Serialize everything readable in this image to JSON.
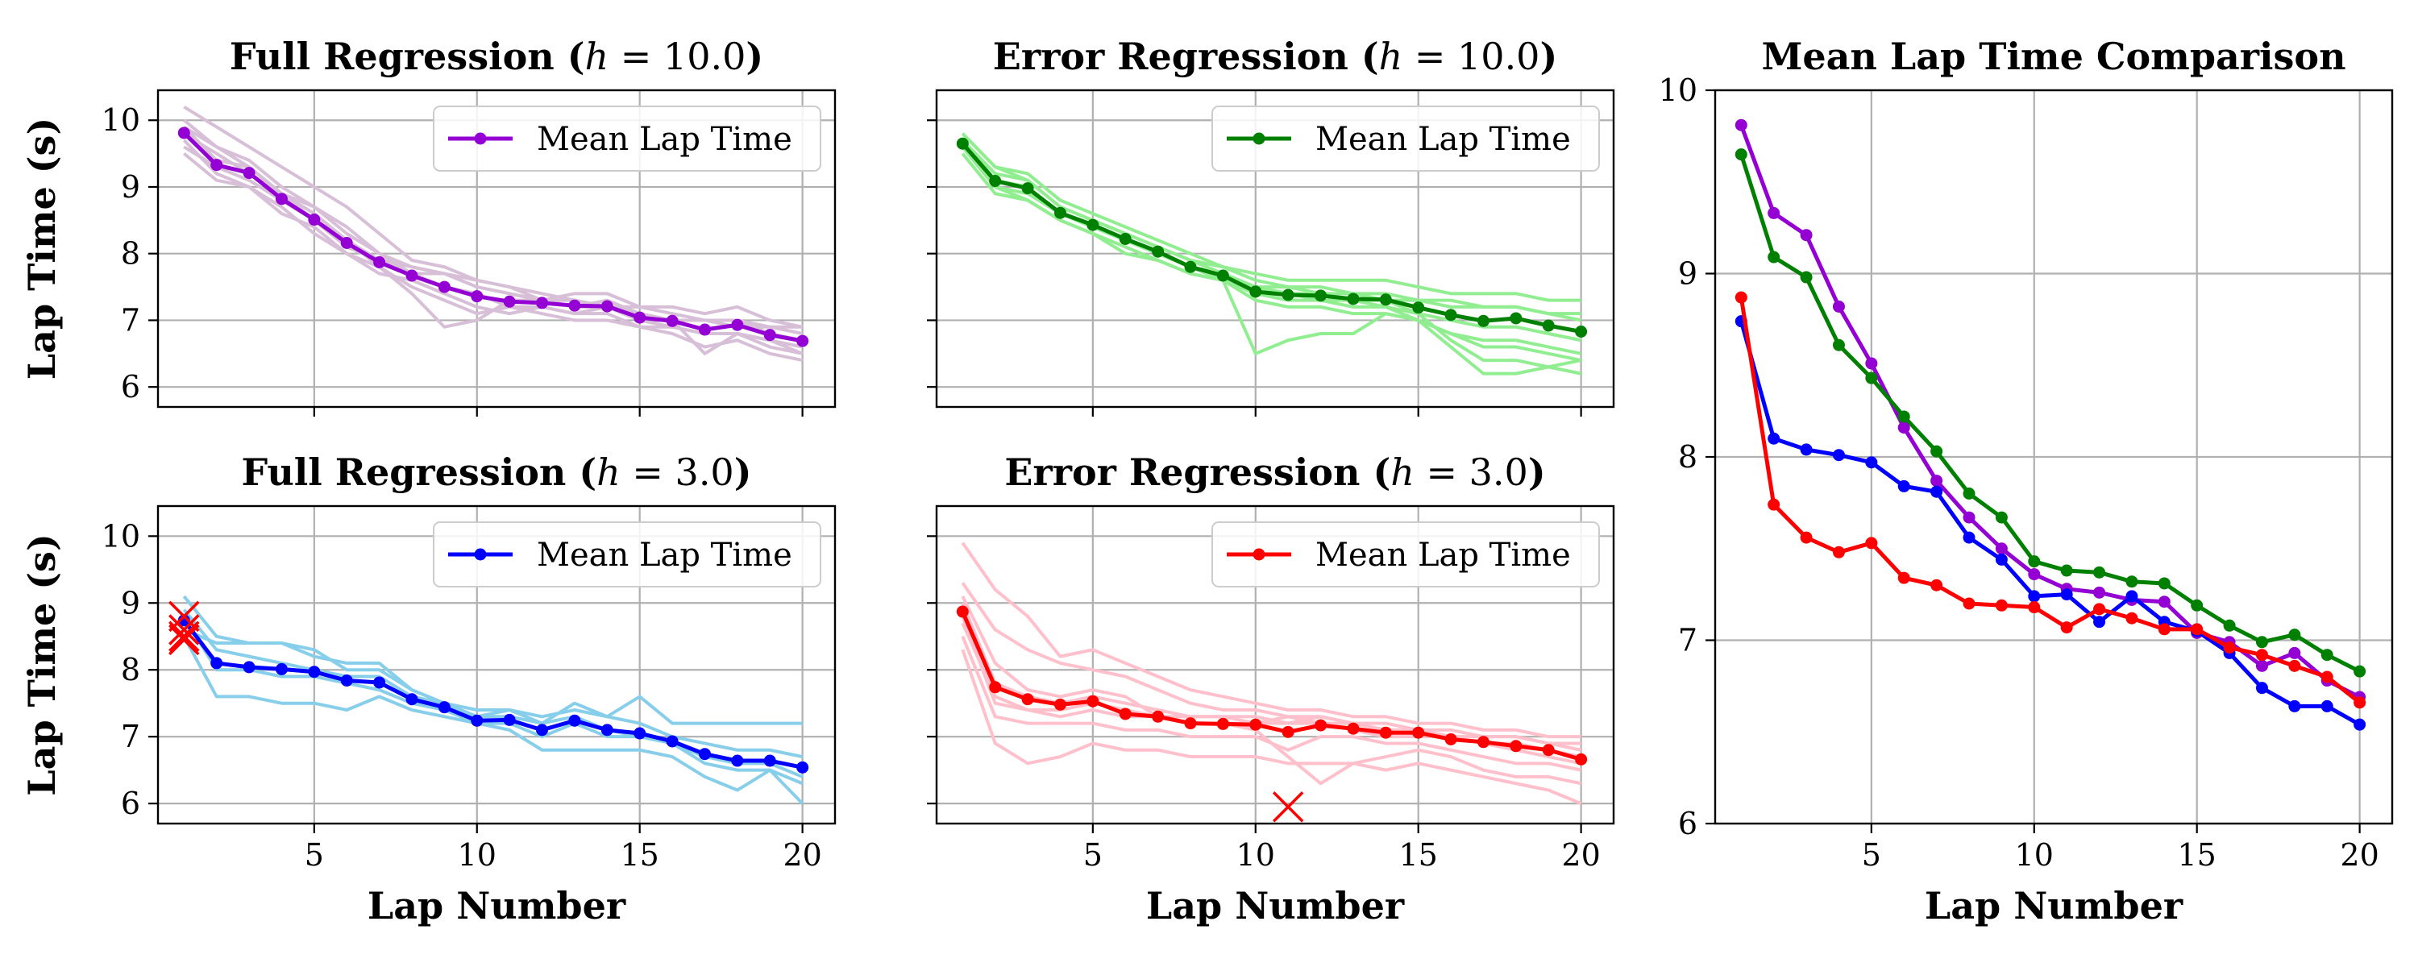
{
  "chart_data": [
    {
      "id": "full_h10",
      "type": "line",
      "title": {
        "main": "Full Regression (",
        "var": "h",
        "eq": " = ",
        "num": "10.0",
        "close": ")"
      },
      "ylabel": "Lap Time (s)",
      "xlabel": "",
      "xlim": [
        0.2,
        21
      ],
      "ylim": [
        5.7,
        10.45
      ],
      "xticks": [
        5,
        10,
        15,
        20
      ],
      "yticks": [
        6,
        7,
        8,
        9,
        10
      ],
      "show_xticklabels": false,
      "show_yticklabels": true,
      "grid": true,
      "legend": {
        "label": "Mean Lap Time",
        "position": "top-right"
      },
      "colors": {
        "trial": "#d8bfd8",
        "mean": "#9400d3"
      },
      "x": [
        1,
        2,
        3,
        4,
        5,
        6,
        7,
        8,
        9,
        10,
        11,
        12,
        13,
        14,
        15,
        16,
        17,
        18,
        19,
        20
      ],
      "mean": [
        9.81,
        9.33,
        9.21,
        8.82,
        8.51,
        8.16,
        7.87,
        7.67,
        7.5,
        7.36,
        7.28,
        7.26,
        7.22,
        7.21,
        7.04,
        6.99,
        6.86,
        6.93,
        6.78,
        6.69
      ],
      "trials": [
        [
          10.2,
          9.9,
          9.6,
          9.3,
          9.0,
          8.7,
          8.3,
          7.9,
          7.8,
          7.6,
          7.5,
          7.4,
          7.3,
          7.2,
          7.2,
          7.1,
          7.0,
          7.0,
          6.9,
          6.8
        ],
        [
          10.0,
          9.6,
          9.3,
          8.9,
          8.7,
          8.4,
          8.0,
          7.8,
          7.7,
          7.6,
          7.5,
          7.3,
          7.3,
          7.2,
          7.1,
          7.0,
          7.0,
          6.9,
          6.9,
          6.9
        ],
        [
          9.8,
          9.5,
          9.2,
          8.9,
          8.5,
          8.1,
          7.9,
          7.7,
          7.5,
          7.4,
          7.2,
          7.2,
          7.1,
          7.1,
          6.9,
          6.9,
          6.8,
          6.8,
          6.7,
          6.6
        ],
        [
          9.7,
          9.2,
          9.0,
          8.7,
          8.3,
          8.0,
          7.7,
          7.6,
          7.4,
          7.2,
          7.1,
          7.2,
          7.1,
          7.2,
          7.0,
          6.9,
          6.8,
          6.8,
          6.6,
          6.5
        ],
        [
          9.5,
          9.1,
          9.0,
          8.6,
          8.4,
          8.0,
          7.8,
          7.5,
          7.3,
          7.1,
          7.2,
          7.1,
          7.0,
          7.0,
          6.9,
          6.8,
          6.6,
          6.7,
          6.5,
          6.4
        ],
        [
          9.9,
          9.6,
          9.4,
          9.0,
          8.7,
          8.3,
          8.0,
          7.7,
          7.7,
          7.5,
          7.4,
          7.3,
          7.4,
          7.4,
          7.2,
          7.2,
          7.1,
          7.2,
          7.0,
          6.9
        ],
        [
          9.6,
          9.3,
          9.1,
          8.8,
          8.5,
          8.2,
          7.8,
          7.4,
          6.9,
          7.0,
          7.3,
          7.3,
          7.2,
          7.2,
          7.0,
          7.0,
          6.5,
          6.8,
          6.7,
          6.5
        ],
        [
          9.9,
          9.4,
          9.3,
          8.9,
          8.6,
          8.2,
          7.9,
          7.8,
          7.7,
          7.5,
          7.4,
          7.3,
          7.2,
          7.3,
          7.1,
          7.0,
          7.0,
          7.0,
          6.8,
          6.7
        ]
      ]
    },
    {
      "id": "err_h10",
      "type": "line",
      "title": {
        "main": "Error Regression (",
        "var": "h",
        "eq": " = ",
        "num": "10.0",
        "close": ")"
      },
      "ylabel": "",
      "xlabel": "",
      "xlim": [
        0.2,
        21
      ],
      "ylim": [
        5.7,
        10.45
      ],
      "xticks": [
        5,
        10,
        15,
        20
      ],
      "yticks": [
        6,
        7,
        8,
        9,
        10
      ],
      "show_xticklabels": false,
      "show_yticklabels": false,
      "grid": true,
      "legend": {
        "label": "Mean Lap Time",
        "position": "top-right"
      },
      "colors": {
        "trial": "#90ee90",
        "mean": "#008000"
      },
      "x": [
        1,
        2,
        3,
        4,
        5,
        6,
        7,
        8,
        9,
        10,
        11,
        12,
        13,
        14,
        15,
        16,
        17,
        18,
        19,
        20
      ],
      "mean": [
        9.65,
        9.09,
        8.98,
        8.61,
        8.43,
        8.22,
        8.03,
        7.8,
        7.67,
        7.43,
        7.38,
        7.37,
        7.32,
        7.31,
        7.19,
        7.08,
        6.99,
        7.03,
        6.92,
        6.83
      ],
      "trials": [
        [
          9.8,
          9.3,
          9.2,
          8.8,
          8.6,
          8.4,
          8.2,
          8.0,
          7.8,
          7.6,
          7.5,
          7.5,
          7.4,
          7.4,
          7.3,
          7.3,
          7.2,
          7.2,
          7.1,
          7.0
        ],
        [
          9.7,
          9.2,
          9.1,
          8.7,
          8.5,
          8.3,
          8.1,
          7.9,
          7.8,
          7.7,
          7.6,
          7.6,
          7.6,
          7.6,
          7.5,
          7.4,
          7.4,
          7.4,
          7.3,
          7.3
        ],
        [
          9.6,
          9.0,
          8.9,
          8.6,
          8.4,
          8.2,
          8.0,
          7.8,
          7.7,
          7.5,
          7.4,
          7.3,
          7.3,
          7.2,
          7.1,
          7.0,
          6.9,
          6.9,
          6.8,
          6.7
        ],
        [
          9.5,
          8.9,
          8.8,
          8.5,
          8.3,
          8.1,
          7.9,
          7.7,
          7.6,
          6.5,
          6.7,
          6.8,
          6.8,
          7.1,
          7.0,
          6.8,
          6.7,
          6.7,
          6.6,
          6.5
        ],
        [
          9.7,
          9.1,
          9.0,
          8.6,
          8.4,
          8.2,
          8.0,
          7.8,
          7.6,
          7.4,
          7.3,
          7.3,
          7.2,
          7.2,
          7.0,
          6.8,
          6.6,
          6.6,
          6.5,
          6.4
        ],
        [
          9.8,
          9.3,
          9.1,
          8.7,
          8.5,
          8.3,
          8.1,
          7.9,
          7.7,
          7.5,
          7.4,
          7.4,
          7.3,
          7.3,
          7.1,
          6.7,
          6.4,
          6.4,
          6.3,
          6.2
        ],
        [
          9.6,
          9.0,
          8.8,
          8.5,
          8.3,
          8.0,
          7.9,
          7.7,
          7.6,
          7.3,
          7.2,
          7.2,
          7.1,
          7.1,
          7.0,
          6.6,
          6.2,
          6.2,
          6.3,
          6.4
        ],
        [
          9.7,
          9.1,
          9.0,
          8.6,
          8.4,
          8.2,
          8.0,
          7.8,
          7.7,
          7.5,
          7.5,
          7.4,
          7.4,
          7.3,
          7.3,
          7.2,
          7.2,
          7.2,
          7.1,
          7.1
        ]
      ]
    },
    {
      "id": "full_h3",
      "type": "line",
      "title": {
        "main": "Full Regression (",
        "var": "h",
        "eq": " = ",
        "num": "3.0",
        "close": ")"
      },
      "ylabel": "Lap Time (s)",
      "xlabel": "Lap Number",
      "xlim": [
        0.2,
        21
      ],
      "ylim": [
        5.7,
        10.45
      ],
      "xticks": [
        5,
        10,
        15,
        20
      ],
      "yticks": [
        6,
        7,
        8,
        9,
        10
      ],
      "show_xticklabels": true,
      "show_yticklabels": true,
      "grid": true,
      "legend": {
        "label": "Mean Lap Time",
        "position": "top-right"
      },
      "colors": {
        "trial": "#87ceeb",
        "mean": "#0000ff",
        "marker": "#ff0000"
      },
      "x": [
        1,
        2,
        3,
        4,
        5,
        6,
        7,
        8,
        9,
        10,
        11,
        12,
        13,
        14,
        15,
        16,
        17,
        18,
        19,
        20
      ],
      "mean": [
        8.74,
        8.1,
        8.04,
        8.01,
        7.97,
        7.84,
        7.81,
        7.56,
        7.44,
        7.24,
        7.25,
        7.1,
        7.24,
        7.1,
        7.05,
        6.93,
        6.74,
        6.64,
        6.64,
        6.54
      ],
      "trials": [
        [
          9.1,
          8.5,
          8.4,
          8.4,
          8.3,
          8.0,
          8.0,
          7.7,
          7.5,
          7.3,
          7.4,
          7.2,
          7.5,
          7.3,
          7.6,
          7.2,
          7.2,
          7.2,
          7.2,
          7.2
        ],
        [
          8.6,
          8.4,
          8.4,
          8.4,
          8.2,
          8.1,
          8.1,
          7.7,
          7.5,
          7.4,
          7.4,
          7.3,
          7.4,
          7.3,
          7.2,
          7.0,
          6.9,
          6.8,
          6.8,
          6.7
        ],
        [
          8.8,
          8.0,
          8.0,
          7.9,
          7.9,
          7.8,
          7.7,
          7.5,
          7.4,
          7.2,
          7.2,
          7.0,
          7.2,
          7.0,
          7.0,
          6.9,
          6.6,
          6.5,
          6.5,
          6.3
        ],
        [
          8.5,
          7.6,
          7.6,
          7.5,
          7.5,
          7.4,
          7.6,
          7.4,
          7.3,
          7.2,
          7.1,
          6.8,
          6.8,
          6.8,
          6.8,
          6.7,
          6.4,
          6.2,
          6.5,
          6.0
        ],
        [
          8.9,
          8.3,
          8.2,
          8.1,
          8.0,
          7.9,
          7.9,
          7.6,
          7.5,
          7.3,
          7.3,
          7.2,
          7.3,
          7.1,
          7.0,
          6.9,
          6.7,
          6.6,
          6.6,
          6.4
        ]
      ],
      "markers": [
        [
          1,
          8.5
        ],
        [
          1,
          8.8
        ],
        [
          1,
          8.6
        ],
        [
          1,
          8.45
        ]
      ]
    },
    {
      "id": "err_h3",
      "type": "line",
      "title": {
        "main": "Error Regression (",
        "var": "h",
        "eq": " = ",
        "num": "3.0",
        "close": ")"
      },
      "ylabel": "",
      "xlabel": "Lap Number",
      "xlim": [
        0.2,
        21
      ],
      "ylim": [
        5.7,
        10.45
      ],
      "xticks": [
        5,
        10,
        15,
        20
      ],
      "yticks": [
        6,
        7,
        8,
        9,
        10
      ],
      "show_xticklabels": true,
      "show_yticklabels": false,
      "grid": true,
      "legend": {
        "label": "Mean Lap Time",
        "position": "top-right"
      },
      "colors": {
        "trial": "#ffc0cb",
        "mean": "#ff0000",
        "marker": "#ff0000"
      },
      "x": [
        1,
        2,
        3,
        4,
        5,
        6,
        7,
        8,
        9,
        10,
        11,
        12,
        13,
        14,
        15,
        16,
        17,
        18,
        19,
        20
      ],
      "mean": [
        8.87,
        7.74,
        7.56,
        7.48,
        7.53,
        7.34,
        7.3,
        7.2,
        7.19,
        7.18,
        7.07,
        7.17,
        7.12,
        7.06,
        7.06,
        6.96,
        6.92,
        6.86,
        6.8,
        6.66
      ],
      "trials": [
        [
          9.9,
          9.2,
          8.8,
          8.2,
          8.3,
          8.1,
          7.9,
          7.7,
          7.6,
          7.5,
          7.4,
          7.4,
          7.3,
          7.3,
          7.2,
          7.2,
          7.1,
          7.1,
          7.0,
          7.0
        ],
        [
          9.3,
          8.6,
          8.3,
          8.1,
          8.0,
          7.9,
          7.7,
          7.5,
          7.4,
          7.4,
          7.3,
          7.3,
          7.2,
          7.2,
          7.1,
          7.1,
          7.0,
          7.0,
          6.9,
          6.9
        ],
        [
          9.1,
          8.1,
          7.7,
          7.6,
          7.7,
          7.6,
          7.3,
          7.3,
          7.3,
          7.2,
          7.2,
          7.2,
          7.2,
          7.1,
          7.1,
          7.0,
          6.9,
          6.9,
          6.8,
          6.7
        ],
        [
          8.7,
          7.6,
          7.4,
          7.3,
          7.4,
          7.3,
          7.3,
          7.2,
          7.2,
          7.2,
          7.3,
          7.2,
          7.1,
          7.0,
          7.0,
          7.0,
          6.9,
          6.8,
          6.7,
          6.6
        ],
        [
          8.5,
          7.3,
          7.2,
          7.2,
          7.2,
          7.1,
          7.1,
          7.0,
          7.0,
          7.0,
          6.8,
          7.0,
          7.0,
          6.9,
          6.9,
          6.8,
          6.7,
          6.6,
          6.6,
          6.5
        ],
        [
          8.3,
          6.9,
          6.6,
          6.7,
          6.9,
          6.8,
          6.8,
          6.7,
          6.7,
          6.7,
          6.6,
          6.6,
          6.6,
          6.5,
          6.6,
          6.5,
          6.4,
          6.3,
          6.2,
          6.0
        ],
        [
          8.8,
          7.5,
          7.4,
          7.4,
          7.5,
          7.4,
          7.3,
          7.2,
          7.2,
          7.1,
          6.7,
          6.3,
          6.6,
          6.7,
          6.8,
          6.7,
          6.5,
          6.4,
          6.4,
          6.3
        ],
        [
          9.0,
          7.8,
          7.6,
          7.5,
          7.6,
          7.5,
          7.4,
          7.3,
          7.3,
          7.3,
          7.2,
          7.3,
          7.2,
          7.1,
          7.1,
          7.0,
          7.0,
          7.0,
          6.9,
          6.8
        ]
      ],
      "markers": [
        [
          11,
          5.95
        ]
      ]
    },
    {
      "id": "comparison",
      "type": "line",
      "title": {
        "main": "Mean Lap Time Comparison"
      },
      "ylabel": "",
      "xlabel": "Lap Number",
      "xlim": [
        0.2,
        21
      ],
      "ylim": [
        6,
        10
      ],
      "xticks": [
        5,
        10,
        15,
        20
      ],
      "yticks": [
        6,
        7,
        8,
        9,
        10
      ],
      "show_xticklabels": true,
      "show_yticklabels": true,
      "grid": true,
      "x": [
        1,
        2,
        3,
        4,
        5,
        6,
        7,
        8,
        9,
        10,
        11,
        12,
        13,
        14,
        15,
        16,
        17,
        18,
        19,
        20
      ],
      "series": [
        {
          "color": "#9400d3",
          "values": [
            9.81,
            9.33,
            9.21,
            8.82,
            8.51,
            8.16,
            7.87,
            7.67,
            7.5,
            7.36,
            7.28,
            7.26,
            7.22,
            7.21,
            7.04,
            6.99,
            6.86,
            6.93,
            6.78,
            6.69
          ]
        },
        {
          "color": "#008000",
          "values": [
            9.65,
            9.09,
            8.98,
            8.61,
            8.43,
            8.22,
            8.03,
            7.8,
            7.67,
            7.43,
            7.38,
            7.37,
            7.32,
            7.31,
            7.19,
            7.08,
            6.99,
            7.03,
            6.92,
            6.83
          ]
        },
        {
          "color": "#0000ff",
          "values": [
            8.74,
            8.1,
            8.04,
            8.01,
            7.97,
            7.84,
            7.81,
            7.56,
            7.44,
            7.24,
            7.25,
            7.1,
            7.24,
            7.1,
            7.05,
            6.93,
            6.74,
            6.64,
            6.64,
            6.54
          ]
        },
        {
          "color": "#ff0000",
          "values": [
            8.87,
            7.74,
            7.56,
            7.48,
            7.53,
            7.34,
            7.3,
            7.2,
            7.19,
            7.18,
            7.07,
            7.17,
            7.12,
            7.06,
            7.06,
            6.96,
            6.92,
            6.86,
            6.8,
            6.66
          ]
        }
      ]
    }
  ]
}
